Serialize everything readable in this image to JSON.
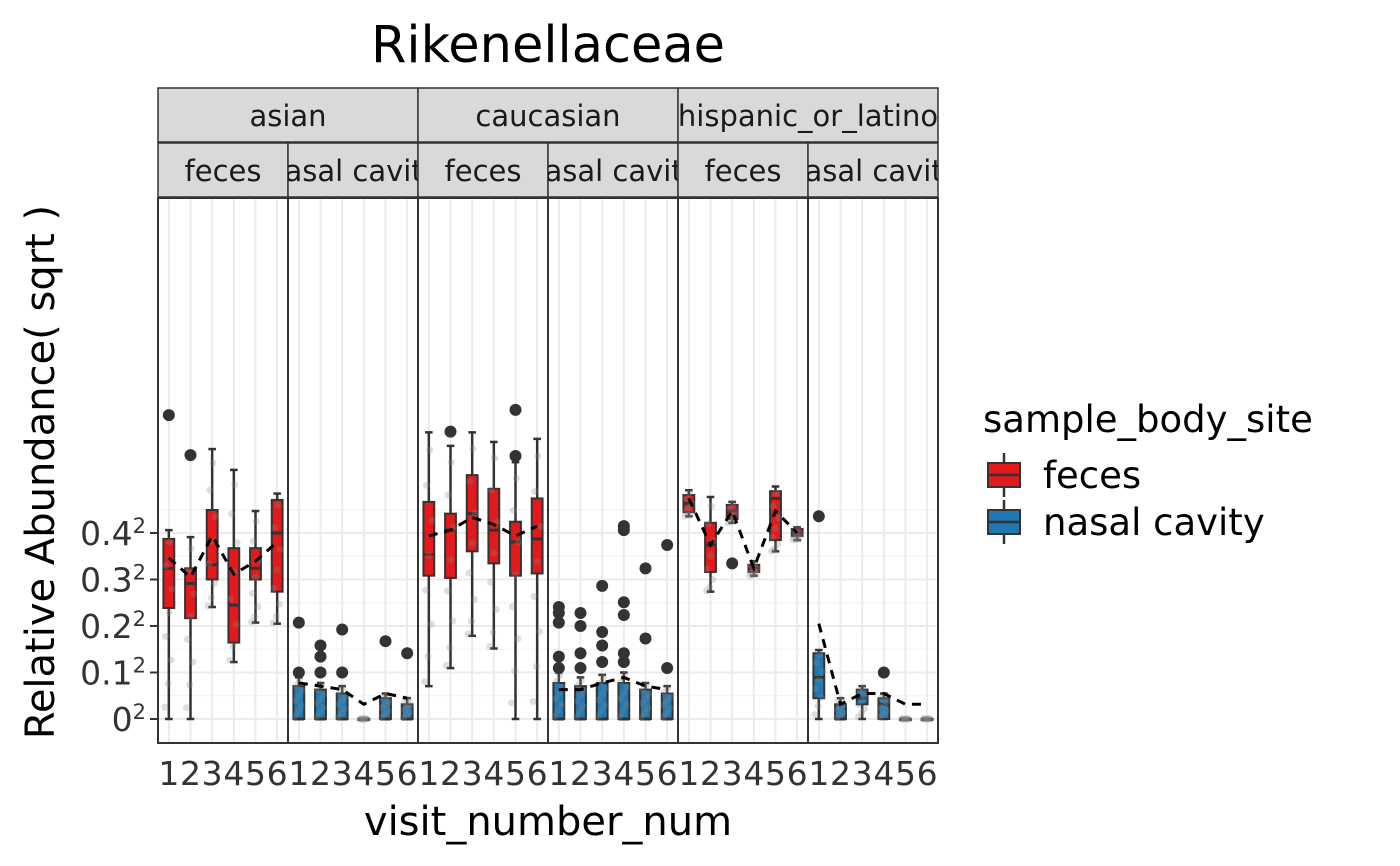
{
  "chart_data": {
    "type": "box",
    "title": "Rikenellaceae",
    "xlabel": "visit_number_num",
    "ylabel": "Relative Abundance( sqrt )",
    "y_scale": "sqrt",
    "yticks": [
      {
        "value": 0,
        "base": "0",
        "exp": "2"
      },
      {
        "value": 0.01,
        "base": "0.1",
        "exp": "2"
      },
      {
        "value": 0.04,
        "base": "0.2",
        "exp": "2"
      },
      {
        "value": 0.09,
        "base": "0.3",
        "exp": "2"
      },
      {
        "value": 0.16,
        "base": "0.4",
        "exp": "2"
      }
    ],
    "x_categories": [
      "1",
      "2",
      "3",
      "4",
      "5",
      "6"
    ],
    "facet_rows_labels": [
      "asian",
      "caucasian",
      "hispanic_or_latino"
    ],
    "facet_sub_labels": [
      "feces",
      "nasal cavity"
    ],
    "legend": {
      "title": "sample_body_site",
      "entries": [
        {
          "name": "feces",
          "color": "#e31a1c"
        },
        {
          "name": "nasal cavity",
          "color": "#1f78b4"
        }
      ]
    },
    "colors": {
      "feces": "#e31a1c",
      "nasal cavity": "#1f78b4"
    },
    "panels": [
      {
        "group": "asian",
        "site": "feces",
        "boxes": [
          {
            "x": 1,
            "q1": 0.057,
            "median": 0.105,
            "q3": 0.15,
            "lo": 0.0,
            "hi": 0.165,
            "outliers": [
              0.427
            ]
          },
          {
            "x": 2,
            "q1": 0.047,
            "median": 0.085,
            "q3": 0.105,
            "lo": 0.0,
            "hi": 0.153,
            "outliers": [
              0.322
            ]
          },
          {
            "x": 3,
            "q1": 0.09,
            "median": 0.11,
            "q3": 0.202,
            "lo": 0.058,
            "hi": 0.337,
            "outliers": []
          },
          {
            "x": 4,
            "q1": 0.027,
            "median": 0.06,
            "q3": 0.135,
            "lo": 0.015,
            "hi": 0.287,
            "outliers": []
          },
          {
            "x": 5,
            "q1": 0.09,
            "median": 0.105,
            "q3": 0.135,
            "lo": 0.043,
            "hi": 0.2,
            "outliers": []
          },
          {
            "x": 6,
            "q1": 0.075,
            "median": 0.16,
            "q3": 0.222,
            "lo": 0.042,
            "hi": 0.235,
            "outliers": []
          }
        ],
        "mean_line": [
          0.12,
          0.093,
          0.155,
          0.097,
          0.115,
          0.145
        ]
      },
      {
        "group": "asian",
        "site": "nasal cavity",
        "boxes": [
          {
            "x": 1,
            "q1": 0.0,
            "median": 0.0,
            "q3": 0.005,
            "lo": 0.0,
            "hi": 0.008,
            "outliers": [
              0.043,
              0.01
            ]
          },
          {
            "x": 2,
            "q1": 0.0,
            "median": 0.0,
            "q3": 0.004,
            "lo": 0.0,
            "hi": 0.006,
            "outliers": [
              0.025,
              0.018,
              0.01
            ]
          },
          {
            "x": 3,
            "q1": 0.0,
            "median": 0.0,
            "q3": 0.003,
            "lo": 0.0,
            "hi": 0.005,
            "outliers": [
              0.037,
              0.01
            ]
          },
          {
            "x": 4,
            "q1": 0.0,
            "median": 0.0,
            "q3": 0.0,
            "lo": 0.0,
            "hi": 0.0,
            "outliers": []
          },
          {
            "x": 5,
            "q1": 0.0,
            "median": 0.0,
            "q3": 0.002,
            "lo": 0.0,
            "hi": 0.003,
            "outliers": [
              0.028
            ]
          },
          {
            "x": 6,
            "q1": 0.0,
            "median": 0.0,
            "q3": 0.001,
            "lo": 0.0,
            "hi": 0.002,
            "outliers": [
              0.02
            ]
          }
        ],
        "mean_line": [
          0.006,
          0.005,
          0.004,
          0.001,
          0.003,
          0.002
        ]
      },
      {
        "group": "caucasian",
        "site": "feces",
        "boxes": [
          {
            "x": 1,
            "q1": 0.095,
            "median": 0.125,
            "q3": 0.218,
            "lo": 0.005,
            "hi": 0.38,
            "outliers": []
          },
          {
            "x": 2,
            "q1": 0.092,
            "median": 0.165,
            "q3": 0.195,
            "lo": 0.012,
            "hi": 0.345,
            "outliers": [
              0.382
            ]
          },
          {
            "x": 3,
            "q1": 0.13,
            "median": 0.195,
            "q3": 0.275,
            "lo": 0.032,
            "hi": 0.38,
            "outliers": []
          },
          {
            "x": 4,
            "q1": 0.112,
            "median": 0.165,
            "q3": 0.245,
            "lo": 0.023,
            "hi": 0.355,
            "outliers": []
          },
          {
            "x": 5,
            "q1": 0.095,
            "median": 0.145,
            "q3": 0.18,
            "lo": 0.0,
            "hi": 0.305,
            "outliers": [
              0.442,
              0.32
            ]
          },
          {
            "x": 6,
            "q1": 0.098,
            "median": 0.15,
            "q3": 0.225,
            "lo": 0.0,
            "hi": 0.363,
            "outliers": []
          }
        ],
        "mean_line": [
          0.155,
          0.165,
          0.188,
          0.175,
          0.155,
          0.172
        ]
      },
      {
        "group": "caucasian",
        "site": "nasal cavity",
        "boxes": [
          {
            "x": 1,
            "q1": 0.0,
            "median": 0.0,
            "q3": 0.006,
            "lo": 0.0,
            "hi": 0.01,
            "outliers": [
              0.058,
              0.052,
              0.043,
              0.018,
              0.012
            ]
          },
          {
            "x": 2,
            "q1": 0.0,
            "median": 0.0,
            "q3": 0.005,
            "lo": 0.0,
            "hi": 0.008,
            "outliers": [
              0.052,
              0.04,
              0.02,
              0.012
            ]
          },
          {
            "x": 3,
            "q1": 0.0,
            "median": 0.0,
            "q3": 0.006,
            "lo": 0.0,
            "hi": 0.009,
            "outliers": [
              0.082,
              0.035,
              0.025,
              0.015
            ]
          },
          {
            "x": 4,
            "q1": 0.0,
            "median": 0.0,
            "q3": 0.006,
            "lo": 0.0,
            "hi": 0.01,
            "outliers": [
              0.172,
              0.165,
              0.063,
              0.05,
              0.02,
              0.015
            ]
          },
          {
            "x": 5,
            "q1": 0.0,
            "median": 0.0,
            "q3": 0.004,
            "lo": 0.0,
            "hi": 0.006,
            "outliers": [
              0.105,
              0.03
            ]
          },
          {
            "x": 6,
            "q1": 0.0,
            "median": 0.0,
            "q3": 0.003,
            "lo": 0.0,
            "hi": 0.005,
            "outliers": [
              0.14,
              0.012
            ]
          }
        ],
        "mean_line": [
          0.004,
          0.004,
          0.006,
          0.008,
          0.005,
          0.004
        ]
      },
      {
        "group": "hispanic_or_latino",
        "site": "feces",
        "boxes": [
          {
            "x": 1,
            "q1": 0.198,
            "median": 0.215,
            "q3": 0.232,
            "lo": 0.19,
            "hi": 0.242,
            "outliers": []
          },
          {
            "x": 2,
            "q1": 0.1,
            "median": 0.14,
            "q3": 0.178,
            "lo": 0.075,
            "hi": 0.228,
            "outliers": []
          },
          {
            "x": 3,
            "q1": 0.185,
            "median": 0.2,
            "q3": 0.212,
            "lo": 0.178,
            "hi": 0.218,
            "outliers": [
              0.112
            ]
          },
          {
            "x": 4,
            "q1": 0.1,
            "median": 0.105,
            "q3": 0.11,
            "lo": 0.095,
            "hi": 0.115,
            "outliers": []
          },
          {
            "x": 5,
            "q1": 0.148,
            "median": 0.225,
            "q3": 0.24,
            "lo": 0.13,
            "hi": 0.25,
            "outliers": []
          },
          {
            "x": 6,
            "q1": 0.155,
            "median": 0.16,
            "q3": 0.167,
            "lo": 0.148,
            "hi": 0.17,
            "outliers": []
          }
        ],
        "mean_line": [
          0.225,
          0.14,
          0.2,
          0.105,
          0.2,
          0.16
        ]
      },
      {
        "group": "hispanic_or_latino",
        "site": "nasal cavity",
        "boxes": [
          {
            "x": 1,
            "q1": 0.002,
            "median": 0.008,
            "q3": 0.02,
            "lo": 0.0,
            "hi": 0.022,
            "outliers": [
              0.19
            ]
          },
          {
            "x": 2,
            "q1": 0.0,
            "median": 0.0,
            "q3": 0.001,
            "lo": 0.0,
            "hi": 0.002,
            "outliers": []
          },
          {
            "x": 3,
            "q1": 0.001,
            "median": 0.002,
            "q3": 0.004,
            "lo": 0.0,
            "hi": 0.005,
            "outliers": []
          },
          {
            "x": 4,
            "q1": 0.0,
            "median": 0.001,
            "q3": 0.002,
            "lo": 0.0,
            "hi": 0.003,
            "outliers": [
              0.01
            ]
          },
          {
            "x": 5,
            "q1": 0.0,
            "median": 0.0,
            "q3": 0.0,
            "lo": 0.0,
            "hi": 0.0,
            "outliers": []
          },
          {
            "x": 6,
            "q1": 0.0,
            "median": 0.0,
            "q3": 0.0,
            "lo": 0.0,
            "hi": 0.0,
            "outliers": []
          }
        ],
        "mean_line": [
          0.042,
          0.001,
          0.003,
          0.003,
          0.001,
          0.001
        ]
      }
    ]
  }
}
